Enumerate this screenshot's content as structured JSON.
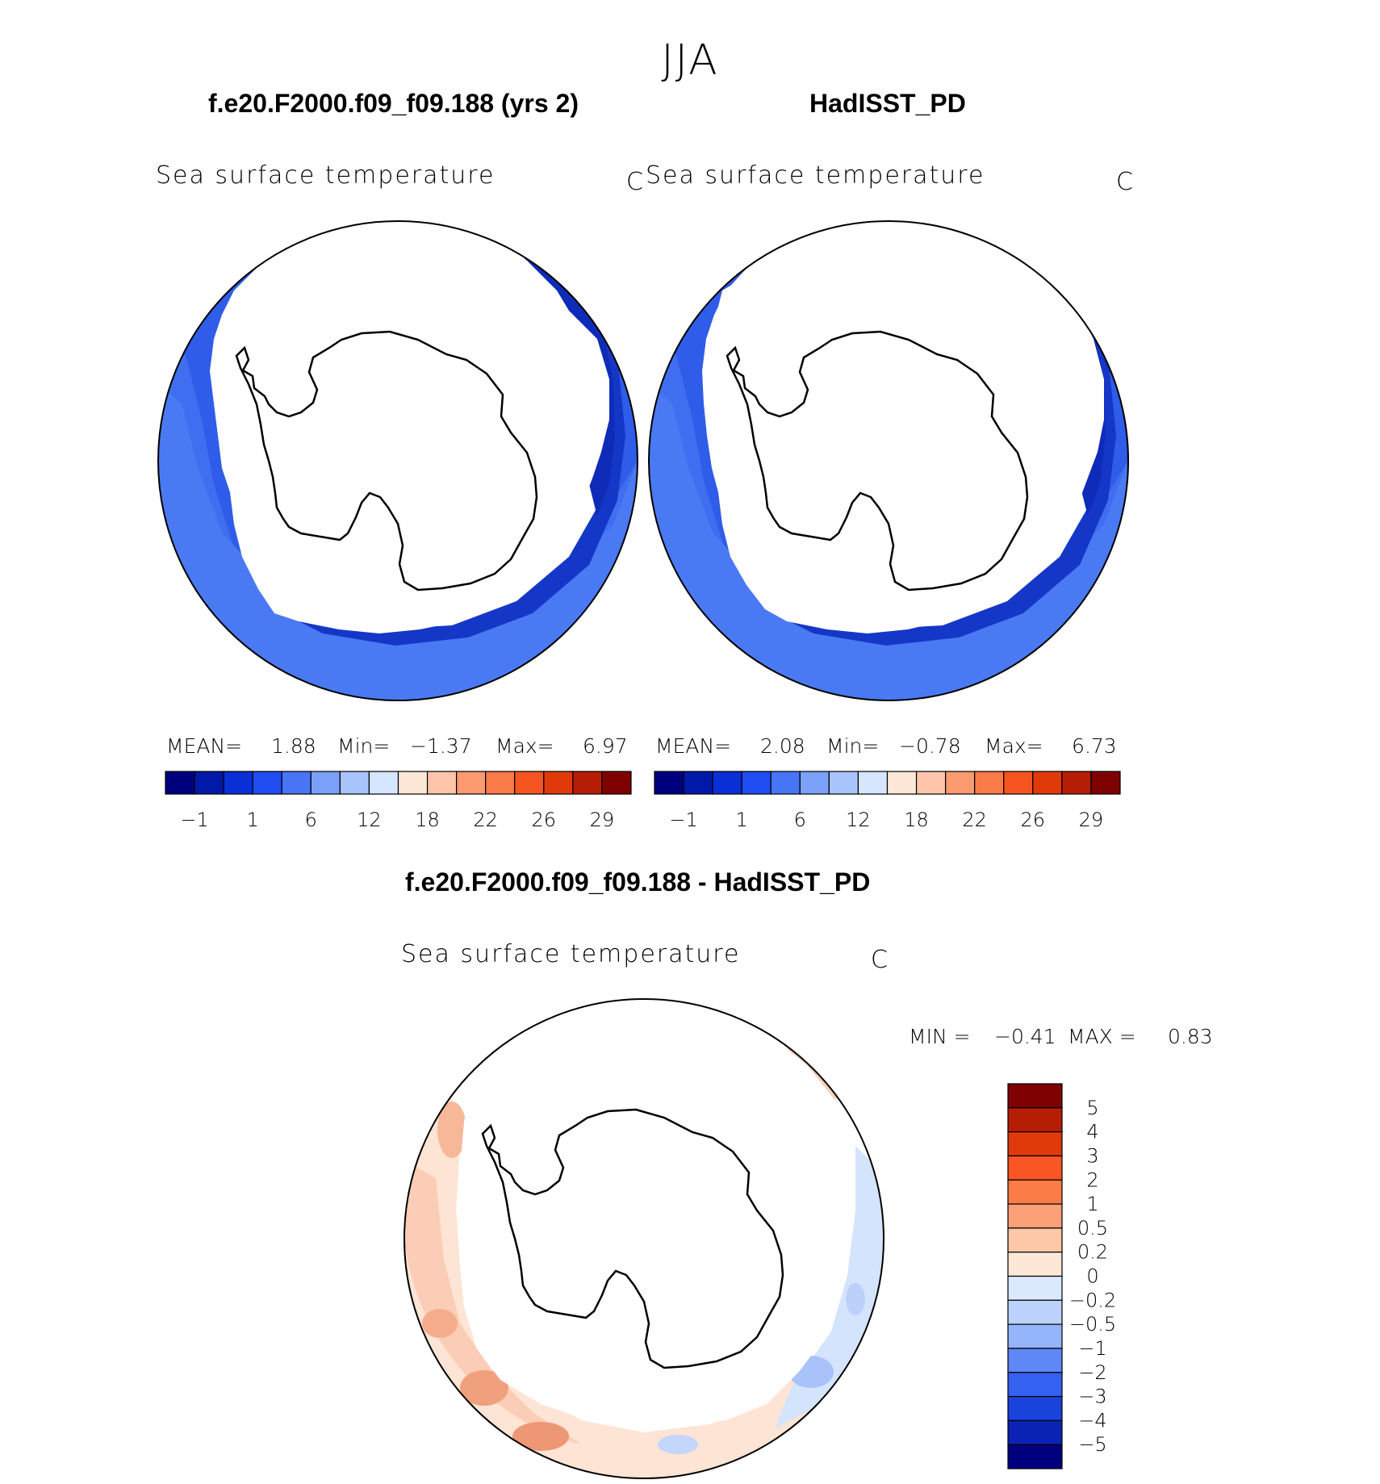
{
  "figure": {
    "season": "JJA",
    "variable_label": "Sea surface temperature",
    "unit": "C"
  },
  "panels": {
    "left": {
      "title": "f.e20.F2000.f09_f09.188 (yrs 2)",
      "mean_label": "MEAN=",
      "mean_value": "1.88",
      "min_label": "Min=",
      "min_value": "−1.37",
      "max_label": "Max=",
      "max_value": "6.97"
    },
    "right": {
      "title": "HadISST_PD",
      "mean_label": "MEAN=",
      "mean_value": "2.08",
      "min_label": "Min=",
      "min_value": "−0.78",
      "max_label": "Max=",
      "max_value": "6.73"
    },
    "diff": {
      "title": "f.e20.F2000.f09_f09.188 - HadISST_PD",
      "min_label": "MIN =",
      "min_value": "−0.41",
      "max_label": "MAX =",
      "max_value": "0.83"
    }
  },
  "colorbars": {
    "absolute": {
      "colors": [
        "#00007f",
        "#0019a8",
        "#0a2fd6",
        "#1f4df2",
        "#4775f5",
        "#7aa0fa",
        "#a8c4fc",
        "#d6e6fe",
        "#fde7d6",
        "#fcc4a8",
        "#fc9a70",
        "#fa7a48",
        "#f55420",
        "#e03a0a",
        "#b51e05",
        "#7f0000"
      ],
      "tick_labels": [
        "−1",
        "1",
        "6",
        "12",
        "18",
        "22",
        "26",
        "29"
      ]
    },
    "difference": {
      "colors": [
        "#7f0000",
        "#b51e05",
        "#e03a0a",
        "#fa5624",
        "#fc7c48",
        "#fca078",
        "#fdc8a8",
        "#fde8d8",
        "#dbe9fd",
        "#bcd2fc",
        "#94b4fb",
        "#5f87f5",
        "#3461f0",
        "#1a43dc",
        "#0a23b4",
        "#00007f"
      ],
      "tick_labels": [
        "5",
        "4",
        "3",
        "2",
        "1",
        "0.5",
        "0.2",
        "0",
        "−0.2",
        "−0.5",
        "−1",
        "−2",
        "−3",
        "−4",
        "−5"
      ]
    }
  }
}
